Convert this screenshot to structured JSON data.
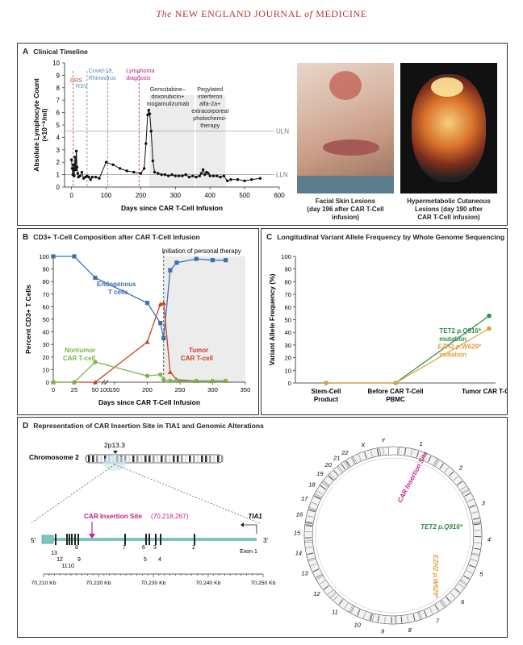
{
  "header": {
    "pre": "The",
    "journal": "NEW ENGLAND JOURNAL",
    "mid": "of",
    "post": "MEDICINE"
  },
  "panelA": {
    "letter": "A",
    "title": "Clinical Timeline",
    "captions": {
      "face": [
        "Facial Skin Lesions",
        "(day 196 after CAR T-Cell",
        "infusion)"
      ],
      "pet": [
        "Hypermetabolic Cutaneous",
        "Lesions (day 190 after",
        "CAR T-Cell infusion)"
      ]
    }
  },
  "panelB": {
    "letter": "B",
    "title": "CD3+ T-Cell Composition after CAR T-Cell Infusion"
  },
  "panelC": {
    "letter": "C",
    "title": "Longitudinal Variant Allele Frequency by Whole Genome Sequencing"
  },
  "panelD": {
    "letter": "D",
    "title": "Representation of CAR Insertion Site in TIA1 and Genomic Alterations",
    "band": "2p13.3",
    "chromosome": "Chromosome 2",
    "insertion_label": "CAR Insertion Site",
    "insertion_pos": "(70,218,267)",
    "gene": "TIA1",
    "five": "5′",
    "three": "3′",
    "exon1": "Exon 1",
    "exons": [
      "13",
      "12",
      "11",
      "10",
      "9",
      "8",
      "7",
      "6",
      "5",
      "4",
      "3",
      "2"
    ],
    "kb_ticks": [
      "70,210 Kb",
      "70,220 Kb",
      "70,230 Kb",
      "70,240 Kb",
      "70,250 Kb"
    ],
    "circos_chrom": [
      "1",
      "2",
      "3",
      "4",
      "5",
      "6",
      "7",
      "8",
      "9",
      "10",
      "11",
      "12",
      "13",
      "14",
      "15",
      "16",
      "17",
      "18",
      "19",
      "20",
      "21",
      "22",
      "X",
      "Y"
    ],
    "circos_labels": {
      "insert": "CAR Insertion Site",
      "tet2": "TET2 p.Q916*",
      "ezh2": "EZH2 p.W629*"
    }
  },
  "colors": {
    "blue": "#3d6fb2",
    "red": "#c9412a",
    "green": "#7ab648",
    "dkgreen": "#2e8b4a",
    "orange": "#e0a040",
    "magenta": "#c21d8a",
    "teal": "#7ec5c0",
    "shade": "#ececec"
  },
  "chart_data": [
    {
      "type": "line",
      "id": "A",
      "xlabel": "Days since CAR T-Cell Infusion",
      "ylabel": "Absolute Lymphocyte Count (×10⁻⁹/ml)",
      "xlim": [
        -20,
        600
      ],
      "ylim": [
        0,
        10
      ],
      "xticks": [
        0,
        100,
        200,
        300,
        400,
        500,
        600
      ],
      "yticks": [
        0,
        1,
        2,
        3,
        4,
        5,
        6,
        7,
        8,
        9,
        10
      ],
      "x": [
        0,
        2,
        4,
        6,
        8,
        10,
        12,
        14,
        16,
        18,
        20,
        25,
        30,
        35,
        40,
        45,
        50,
        55,
        60,
        70,
        80,
        100,
        120,
        140,
        160,
        180,
        200,
        210,
        215,
        220,
        223,
        226,
        230,
        235,
        240,
        250,
        260,
        270,
        280,
        290,
        300,
        310,
        320,
        330,
        340,
        350,
        360,
        370,
        375,
        380,
        385,
        390,
        395,
        400,
        410,
        420,
        430,
        440,
        450,
        460,
        480,
        500,
        520,
        545
      ],
      "y": [
        2.2,
        1.5,
        1.0,
        1.8,
        0.9,
        2.4,
        1.4,
        2.9,
        1.6,
        1.1,
        0.8,
        0.9,
        1.2,
        0.7,
        0.8,
        0.9,
        0.8,
        0.6,
        0.8,
        0.8,
        0.7,
        2.0,
        1.8,
        1.5,
        1.3,
        1.2,
        1.1,
        1.5,
        3.5,
        5.8,
        6.2,
        5.9,
        4.5,
        2.1,
        1.2,
        1.1,
        1.0,
        1.0,
        0.9,
        1.0,
        0.9,
        0.9,
        0.9,
        1.0,
        0.8,
        0.9,
        0.8,
        0.9,
        1.1,
        1.4,
        1.0,
        1.2,
        1.1,
        0.9,
        0.9,
        0.9,
        0.8,
        0.9,
        0.5,
        0.6,
        0.6,
        0.5,
        0.6,
        0.7
      ],
      "reference_lines": [
        {
          "label": "ULN",
          "y": 4.5
        },
        {
          "label": "LLN",
          "y": 1.0
        }
      ],
      "events": [
        {
          "label": "CRS",
          "x": 5
        },
        {
          "label": "RSV",
          "x": 45
        },
        {
          "label": "Covid-19, Rhinovirus",
          "x": 105
        },
        {
          "label": "Lymphoma diagnosis",
          "x": 195
        }
      ],
      "therapies": [
        {
          "label": "Gemcitabine– doxorubicin+ mogamulizumab",
          "start": 225,
          "end": 355
        },
        {
          "label": "Pegylated interferon alfa-2a+ extracorporeal photochemo- therapy",
          "start": 360,
          "end": 445
        }
      ]
    },
    {
      "type": "line",
      "id": "B",
      "xlabel": "Days since CAR T-Cell Infusion",
      "ylabel": "Percent CD3+ T Cells",
      "xlim": [
        0,
        350
      ],
      "ylim": [
        0,
        100
      ],
      "xticks": [
        0,
        25,
        50,
        100,
        150,
        200,
        250,
        300,
        350
      ],
      "yticks": [
        0,
        10,
        20,
        30,
        40,
        50,
        60,
        70,
        80,
        90,
        100
      ],
      "annotation": "Initiation of personal therapy",
      "annotation_x": 225,
      "series": [
        {
          "name": "Endogenous T cells",
          "x": [
            0,
            25,
            50,
            200,
            220,
            225,
            235,
            245,
            275,
            300,
            320
          ],
          "y": [
            100,
            100,
            83,
            63,
            47,
            35,
            89,
            95,
            98,
            97,
            97
          ]
        },
        {
          "name": "Tumor CAR T-cell",
          "x": [
            0,
            25,
            50,
            200,
            220,
            225,
            235,
            245,
            275,
            300,
            320
          ],
          "y": [
            0,
            0,
            0,
            32,
            62,
            63,
            8,
            2,
            1,
            1,
            1
          ]
        },
        {
          "name": "Nontumor CAR T-cell",
          "x": [
            0,
            25,
            50,
            200,
            220,
            225,
            235,
            245,
            275,
            300,
            320
          ],
          "y": [
            0,
            0,
            16,
            5,
            6,
            2,
            1,
            1,
            1,
            1,
            1
          ]
        }
      ]
    },
    {
      "type": "line",
      "id": "C",
      "ylabel": "Variant Allele Frequency (%)",
      "ylim": [
        0,
        100
      ],
      "yticks": [
        0,
        10,
        20,
        30,
        40,
        50,
        60,
        70,
        80,
        90,
        100
      ],
      "categories": [
        "Stem-Cell Product",
        "Before CAR T-Cell PBMC",
        "Tumor CAR T-Cell"
      ],
      "series": [
        {
          "name": "TET2 p.Q916* mutation",
          "values": [
            0,
            0,
            53
          ]
        },
        {
          "name": "EZH2 p.W629* mutation",
          "values": [
            0,
            0,
            43
          ]
        }
      ]
    }
  ]
}
